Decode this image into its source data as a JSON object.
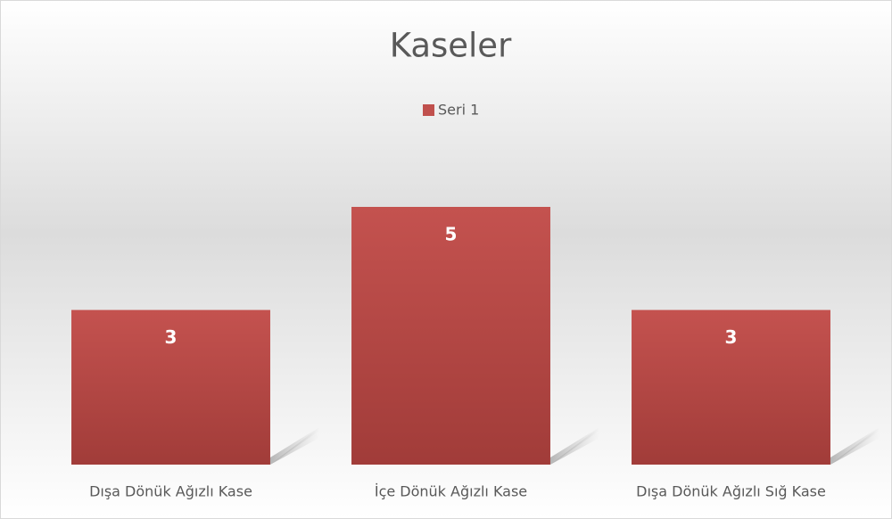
{
  "chart_data": {
    "type": "bar",
    "title": "Kaseler",
    "categories": [
      "Dışa Dönük Ağızlı Kase",
      "İçe Dönük Ağızlı Kase",
      "Dışa Dönük Ağızlı Sığ Kase"
    ],
    "series": [
      {
        "name": "Seri 1",
        "color": "#c0504d",
        "values": [
          3,
          5,
          3
        ]
      }
    ],
    "legend": "top"
  }
}
